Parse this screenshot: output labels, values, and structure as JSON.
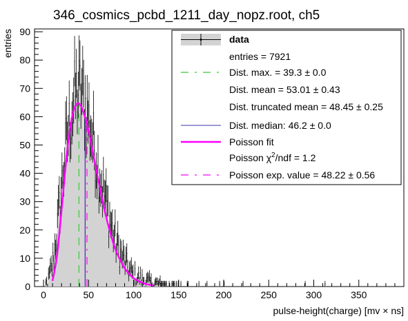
{
  "chart_data": {
    "type": "histogram",
    "title": "346_cosmics_pcbd_1211_day_nopz.root, ch5",
    "xlabel": "pulse-height(charge) [mv × ns]",
    "ylabel": "entries",
    "xlim": [
      -10,
      400
    ],
    "ylim": [
      0,
      91
    ],
    "x_ticks": [
      0,
      50,
      100,
      150,
      200,
      250,
      300,
      350
    ],
    "y_ticks": [
      0,
      10,
      20,
      30,
      40,
      50,
      60,
      70,
      80,
      90
    ],
    "grid": false,
    "legend_position": "top-right",
    "bin_width": 1,
    "histogram_colors": {
      "fill": "#d3d3d3",
      "line": "#000000"
    },
    "histogram_envelope": {
      "x": [
        0,
        5,
        10,
        15,
        20,
        25,
        30,
        35,
        40,
        45,
        50,
        55,
        60,
        65,
        70,
        75,
        80,
        85,
        90,
        95,
        100,
        110,
        120,
        130,
        140,
        150,
        175,
        200,
        250,
        300,
        350,
        400
      ],
      "y": [
        0,
        2,
        8,
        20,
        35,
        50,
        60,
        68,
        70,
        66,
        60,
        52,
        44,
        36,
        29,
        22,
        16,
        12,
        9,
        6,
        4,
        2.5,
        1.5,
        1,
        0.6,
        0.4,
        0.2,
        0.1,
        0.05,
        0.02,
        0.01,
        0
      ]
    },
    "fit": {
      "name": "Poisson fit",
      "color": "#ff00ff",
      "x_range": [
        10,
        122
      ],
      "peak_x": 39,
      "peak_y": 64.5,
      "curve": {
        "x": [
          10,
          15,
          20,
          25,
          30,
          35,
          40,
          45,
          50,
          55,
          60,
          65,
          70,
          75,
          80,
          85,
          90,
          95,
          100,
          105,
          110,
          115,
          122
        ],
        "y": [
          2,
          11,
          27,
          44,
          57,
          63.5,
          64.5,
          61,
          55,
          47,
          39,
          31,
          24,
          18,
          13,
          9.5,
          6.5,
          4.5,
          3,
          2,
          1.3,
          0.8,
          0.3
        ]
      }
    },
    "markers": [
      {
        "name": "Dist. max.",
        "x": 39.3,
        "color": "#33cc33",
        "style": "dash"
      },
      {
        "name": "Dist. median",
        "x": 46.2,
        "color": "#3333aa",
        "style": "solid"
      },
      {
        "name": "Poisson exp. value",
        "x": 48.22,
        "color": "#ff00ff",
        "style": "dashdot"
      }
    ],
    "stats": {
      "entries": 7921,
      "dist_max": "39.3 ± 0.0",
      "dist_mean": "53.01 ± 0.43",
      "dist_truncated_mean": "48.45 ± 0.25",
      "dist_median": "46.2 ± 0.0",
      "poisson_chi2_ndf": 1.2,
      "poisson_exp_value": "48.22 ± 0.56"
    }
  },
  "legend": {
    "data": "data",
    "entries": "entries = 7921",
    "dist_max": "Dist. max. = 39.3 ± 0.0",
    "dist_mean": "Dist. mean = 53.01 ± 0.43",
    "dist_trunc": "Dist. truncated mean = 48.45 ± 0.25",
    "dist_median": "Dist. median: 46.2 ± 0.0",
    "poisson_fit": "Poisson fit",
    "poisson_chi2_prefix": "Poisson χ",
    "poisson_chi2_sup": "2",
    "poisson_chi2_suffix": "/ndf = 1.2",
    "poisson_exp": "Poisson exp. value = 48.22 ± 0.56"
  }
}
